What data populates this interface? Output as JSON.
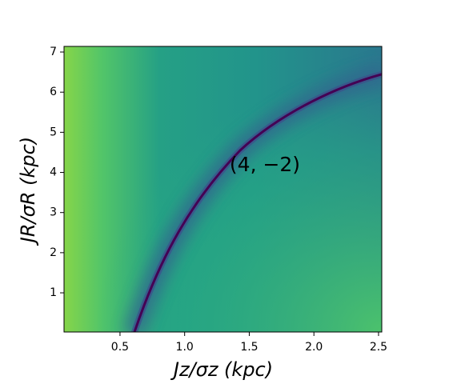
{
  "chart_data": {
    "type": "heatmap",
    "xlabel": "Jz/σz (kpc)",
    "ylabel": "JR/σR (kpc)",
    "annotation": "(4, −2)",
    "xlim": [
      0.067,
      2.525
    ],
    "ylim": [
      0.024,
      7.14
    ],
    "xticks": [
      0.5,
      {
        "value": 1,
        "label": "1.0"
      },
      1.5,
      {
        "value": 2,
        "label": "2.0"
      },
      2.5
    ],
    "yticks": [
      1,
      2,
      3,
      4,
      5,
      6,
      7
    ]
  }
}
